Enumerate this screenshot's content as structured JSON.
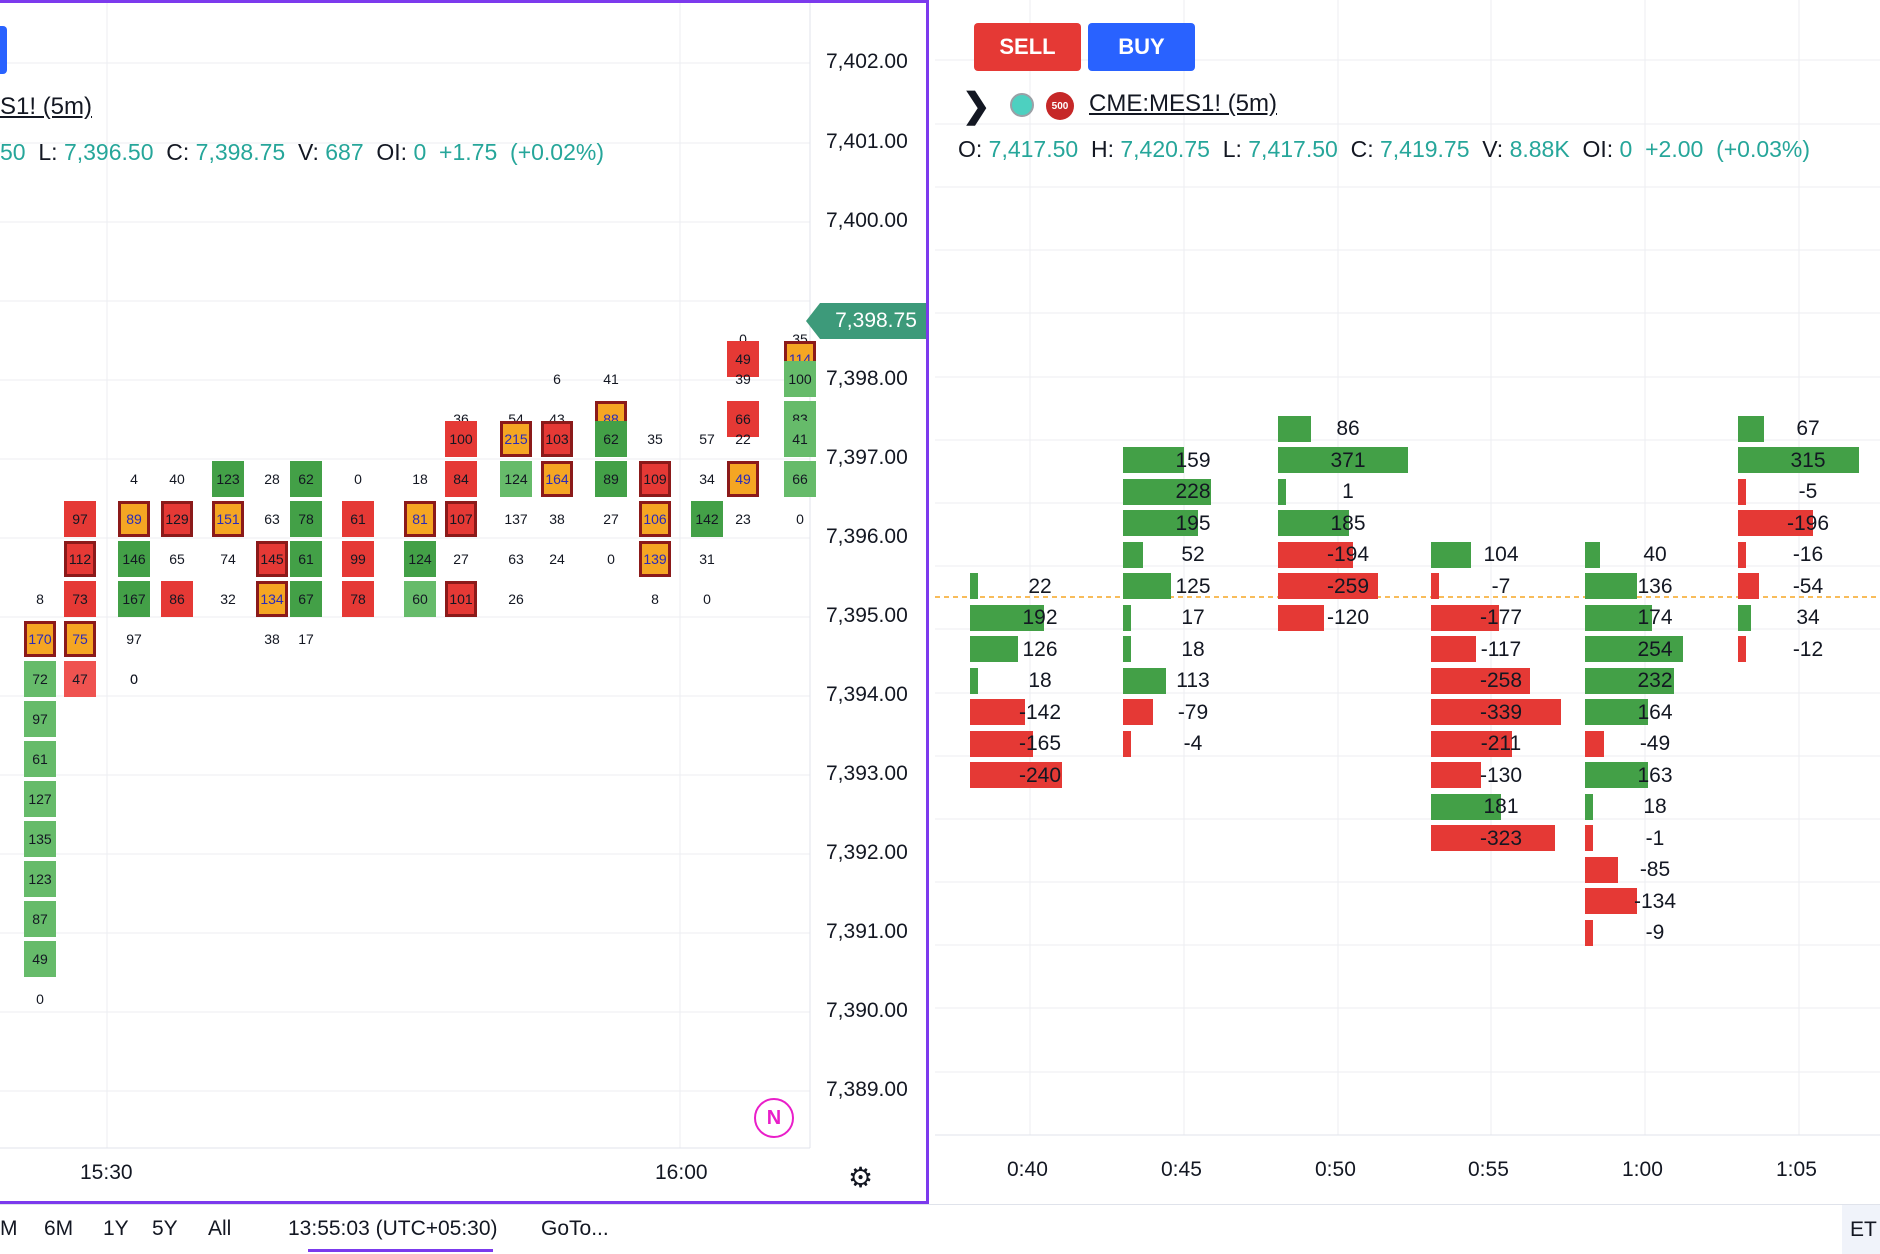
{
  "left": {
    "symbol": "S1! (5m)",
    "ohlc": {
      "o_partial": "50",
      "l_key": "L:",
      "l": "7,396.50",
      "c_key": "C:",
      "c": "7,398.75",
      "v_key": "V:",
      "v": "687",
      "oi_key": "OI:",
      "oi": "0",
      "chg": "+1.75",
      "chg_pct": "(+0.02%)"
    },
    "price_axis": [
      "7,402.00",
      "7,401.00",
      "7,400.00",
      "7,398.00",
      "7,397.00",
      "7,396.00",
      "7,395.00",
      "7,394.00",
      "7,393.00",
      "7,392.00",
      "7,391.00",
      "7,390.00",
      "7,389.00"
    ],
    "current_price": "7,398.75",
    "time_axis": [
      "15:30",
      "16:00"
    ],
    "cells": [
      {
        "t": "170",
        "c": "orange"
      },
      {
        "t": "72",
        "c": "lgreen"
      },
      {
        "t": "97",
        "c": "lgreen"
      },
      {
        "t": "61",
        "c": "lgreen"
      },
      {
        "t": "127",
        "c": "lgreen"
      },
      {
        "t": "135",
        "c": "lgreen"
      },
      {
        "t": "123",
        "c": "lgreen"
      },
      {
        "t": "87",
        "c": "lgreen"
      },
      {
        "t": "49",
        "c": "lgreen"
      },
      {
        "t": "0",
        "c": "none"
      },
      {
        "t": "8",
        "c": "none"
      },
      {
        "t": "97",
        "c": "red"
      },
      {
        "t": "112",
        "c": "red"
      },
      {
        "t": "73",
        "c": "red"
      },
      {
        "t": "75",
        "c": "orange"
      },
      {
        "t": "47",
        "c": "lred"
      },
      {
        "t": "0",
        "c": "none"
      },
      {
        "t": "4",
        "c": "none"
      },
      {
        "t": "89",
        "c": "orange"
      },
      {
        "t": "146",
        "c": "green"
      },
      {
        "t": "167",
        "c": "green"
      },
      {
        "t": "97",
        "c": "none"
      },
      {
        "t": "0",
        "c": "none"
      },
      {
        "t": "40",
        "c": "none"
      },
      {
        "t": "129",
        "c": "red"
      },
      {
        "t": "65",
        "c": "none"
      },
      {
        "t": "86",
        "c": "red"
      },
      {
        "t": "123",
        "c": "green"
      },
      {
        "t": "151",
        "c": "orange"
      },
      {
        "t": "74",
        "c": "none"
      },
      {
        "t": "32",
        "c": "none"
      },
      {
        "t": "28",
        "c": "none"
      },
      {
        "t": "63",
        "c": "none"
      },
      {
        "t": "145",
        "c": "red"
      },
      {
        "t": "134",
        "c": "orange"
      },
      {
        "t": "38",
        "c": "none"
      },
      {
        "t": "62",
        "c": "green"
      },
      {
        "t": "78",
        "c": "green"
      },
      {
        "t": "61",
        "c": "green"
      },
      {
        "t": "67",
        "c": "green"
      },
      {
        "t": "17",
        "c": "none"
      },
      {
        "t": "0",
        "c": "none"
      },
      {
        "t": "61",
        "c": "red"
      },
      {
        "t": "99",
        "c": "red"
      },
      {
        "t": "78",
        "c": "red"
      },
      {
        "t": "18",
        "c": "none"
      },
      {
        "t": "81",
        "c": "orange"
      },
      {
        "t": "124",
        "c": "green"
      },
      {
        "t": "60",
        "c": "lgreen"
      },
      {
        "t": "36",
        "c": "none"
      },
      {
        "t": "100",
        "c": "red"
      },
      {
        "t": "84",
        "c": "red"
      },
      {
        "t": "107",
        "c": "red"
      },
      {
        "t": "27",
        "c": "none"
      },
      {
        "t": "101",
        "c": "red"
      },
      {
        "t": "54",
        "c": "none"
      },
      {
        "t": "215",
        "c": "orange"
      },
      {
        "t": "124",
        "c": "lgreen"
      },
      {
        "t": "137",
        "c": "none"
      },
      {
        "t": "63",
        "c": "none"
      },
      {
        "t": "26",
        "c": "none"
      },
      {
        "t": "6",
        "c": "none"
      },
      {
        "t": "43",
        "c": "none"
      },
      {
        "t": "103",
        "c": "red"
      },
      {
        "t": "164",
        "c": "orange"
      },
      {
        "t": "38",
        "c": "none"
      },
      {
        "t": "24",
        "c": "none"
      },
      {
        "t": "41",
        "c": "none"
      },
      {
        "t": "88",
        "c": "orange"
      },
      {
        "t": "62",
        "c": "green"
      },
      {
        "t": "89",
        "c": "green"
      },
      {
        "t": "27",
        "c": "none"
      },
      {
        "t": "0",
        "c": "none"
      },
      {
        "t": "35",
        "c": "none"
      },
      {
        "t": "109",
        "c": "red"
      },
      {
        "t": "106",
        "c": "orange"
      },
      {
        "t": "139",
        "c": "orange"
      },
      {
        "t": "8",
        "c": "none"
      },
      {
        "t": "57",
        "c": "none"
      },
      {
        "t": "34",
        "c": "none"
      },
      {
        "t": "142",
        "c": "green"
      },
      {
        "t": "31",
        "c": "none"
      },
      {
        "t": "0",
        "c": "none"
      },
      {
        "t": "0",
        "c": "none"
      },
      {
        "t": "49",
        "c": "red"
      },
      {
        "t": "39",
        "c": "none"
      },
      {
        "t": "66",
        "c": "red"
      },
      {
        "t": "22",
        "c": "none"
      },
      {
        "t": "49",
        "c": "orange"
      },
      {
        "t": "23",
        "c": "none"
      },
      {
        "t": "35",
        "c": "none"
      },
      {
        "t": "114",
        "c": "orange"
      },
      {
        "t": "100",
        "c": "lgreen"
      },
      {
        "t": "83",
        "c": "lgreen"
      },
      {
        "t": "41",
        "c": "lgreen"
      },
      {
        "t": "66",
        "c": "lgreen"
      },
      {
        "t": "0",
        "c": "none"
      }
    ]
  },
  "right": {
    "sell_label": "SELL",
    "buy_label": "BUY",
    "symbol": "CME:MES1! (5m)",
    "badge_500": "500",
    "ohlc": {
      "o_key": "O:",
      "o": "7,417.50",
      "h_key": "H:",
      "h": "7,420.75",
      "l_key": "L:",
      "l": "7,417.50",
      "c_key": "C:",
      "c": "7,419.75",
      "v_key": "V:",
      "v": "8.88K",
      "oi_key": "OI:",
      "oi": "0",
      "chg": "+2.00",
      "chg_pct": "(+0.03%)"
    },
    "time_axis": [
      "0:40",
      "0:45",
      "0:50",
      "0:55",
      "1:00",
      "1:05"
    ],
    "columns": [
      {
        "values": [
          "22",
          "192",
          "126",
          "18",
          "-142",
          "-165",
          "-240"
        ]
      },
      {
        "values": [
          "159",
          "228",
          "195",
          "52",
          "125",
          "17",
          "18",
          "113",
          "-79",
          "-4"
        ]
      },
      {
        "values": [
          "86",
          "371",
          "1",
          "185",
          "-194",
          "-259",
          "-120"
        ]
      },
      {
        "values": [
          "104",
          "-7",
          "-177",
          "-117",
          "-258",
          "-339",
          "-211",
          "-130",
          "181",
          "-323"
        ]
      },
      {
        "values": [
          "40",
          "136",
          "174",
          "254",
          "232",
          "164",
          "-49",
          "163",
          "18",
          "-1",
          "-85",
          "-134",
          "-9"
        ]
      },
      {
        "values": [
          "67",
          "315",
          "-5",
          "-196",
          "-16",
          "-54",
          "34",
          "-12"
        ]
      }
    ]
  },
  "bottom_bar": {
    "ranges": [
      "M",
      "6M",
      "1Y",
      "5Y",
      "All"
    ],
    "clock": "13:55:03 (UTC+05:30)",
    "goto": "GoTo...",
    "et": "ET"
  },
  "n_badge": "N",
  "colors": {
    "green": "#4caf50",
    "red": "#e53935",
    "orange": "#f5a623",
    "teal": "#3d9a7a",
    "purple": "#7c3aed",
    "blue": "#2962ff"
  }
}
